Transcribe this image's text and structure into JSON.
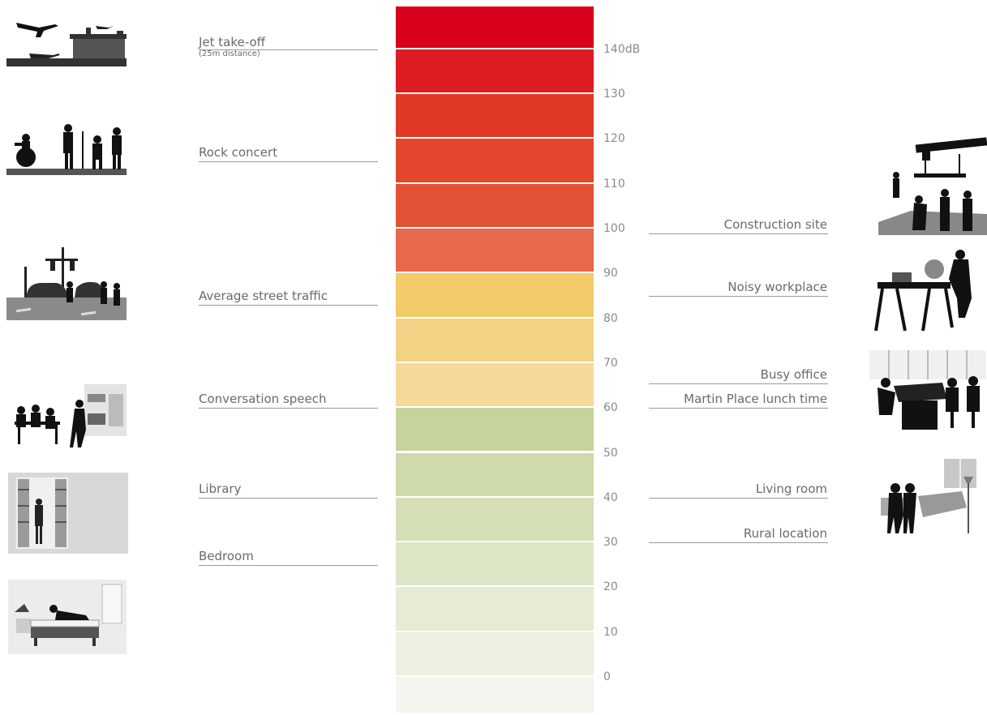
{
  "chart_data": {
    "type": "diagram",
    "unit": "dB",
    "ticks": [
      {
        "value": 140,
        "label": "140dB"
      },
      {
        "value": 130,
        "label": "130"
      },
      {
        "value": 120,
        "label": "120"
      },
      {
        "value": 110,
        "label": "110"
      },
      {
        "value": 100,
        "label": "100"
      },
      {
        "value": 90,
        "label": "90"
      },
      {
        "value": 80,
        "label": "80"
      },
      {
        "value": 70,
        "label": "70"
      },
      {
        "value": 60,
        "label": "60"
      },
      {
        "value": 50,
        "label": "50"
      },
      {
        "value": 40,
        "label": "40"
      },
      {
        "value": 30,
        "label": "30"
      },
      {
        "value": 20,
        "label": "20"
      },
      {
        "value": 10,
        "label": "10"
      },
      {
        "value": 0,
        "label": "0"
      }
    ],
    "bands": [
      {
        "from": 140,
        "to": 150,
        "color": "#d9001b"
      },
      {
        "from": 130,
        "to": 140,
        "color": "#dd1d22"
      },
      {
        "from": 120,
        "to": 130,
        "color": "#e03a27"
      },
      {
        "from": 110,
        "to": 120,
        "color": "#e2472d"
      },
      {
        "from": 100,
        "to": 110,
        "color": "#e45236"
      },
      {
        "from": 90,
        "to": 100,
        "color": "#e7684a"
      },
      {
        "from": 80,
        "to": 90,
        "color": "#f2cb6a"
      },
      {
        "from": 70,
        "to": 80,
        "color": "#f4d285"
      },
      {
        "from": 60,
        "to": 70,
        "color": "#f6d998"
      },
      {
        "from": 50,
        "to": 60,
        "color": "#c6d39d"
      },
      {
        "from": 40,
        "to": 50,
        "color": "#cfdaab"
      },
      {
        "from": 30,
        "to": 40,
        "color": "#d5dfb6"
      },
      {
        "from": 20,
        "to": 30,
        "color": "#dde6c6"
      },
      {
        "from": 10,
        "to": 20,
        "color": "#e5ebd4"
      },
      {
        "from": 0,
        "to": 10,
        "color": "#ecf0e0"
      },
      {
        "from": -8,
        "to": 0,
        "color": "#f3f5ef"
      }
    ],
    "sources_left": [
      {
        "label": "Jet take-off",
        "sub": "(25m distance)",
        "db": 140,
        "icon": "jet-airport-icon"
      },
      {
        "label": "Rock concert",
        "db": 115,
        "icon": "rock-band-icon"
      },
      {
        "label": "Average street traffic",
        "db": 83,
        "icon": "street-traffic-icon"
      },
      {
        "label": "Conversation speech",
        "db": 60,
        "icon": "conversation-icon"
      },
      {
        "label": "Library",
        "db": 40,
        "icon": "library-icon"
      },
      {
        "label": "Bedroom",
        "db": 25,
        "icon": "bedroom-icon"
      }
    ],
    "sources_right": [
      {
        "label": "Construction site",
        "db": 99,
        "icon": "construction-site-icon"
      },
      {
        "label": "Noisy workplace",
        "db": 85,
        "icon": "workplace-icon"
      },
      {
        "label": "Busy office",
        "db": 65.5,
        "icon": "office-icon"
      },
      {
        "label": "Martin Place lunch time",
        "db": 60,
        "icon": ""
      },
      {
        "label": "Living room",
        "db": 40,
        "icon": "living-room-icon"
      },
      {
        "label": "Rural location",
        "db": 30,
        "icon": ""
      }
    ]
  }
}
